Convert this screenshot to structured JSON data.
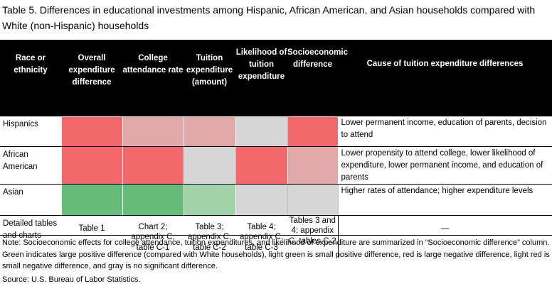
{
  "title": "Table 5. Differences in educational investments among Hispanic, African American, and Asian households compared with White (non-Hispanic) households",
  "colors": {
    "red": "#f4686b",
    "light_red": "#e2a7a9",
    "gray": "#d6d6d6",
    "green": "#66bc7a",
    "light_green": "#a2d2a8",
    "header_bg": "#000000"
  },
  "headers": {
    "race": "Race or ethnicity",
    "overall": "Overall expenditure difference",
    "college": "College attendance rate",
    "tuition": "Tuition expenditure (amount)",
    "likelihood": "Likelihood of tuition expenditure",
    "socio": "Socioeconomic difference",
    "cause": "Cause of tuition expenditure differences"
  },
  "rows": [
    {
      "label": "Hispanics",
      "cells": [
        "red",
        "light_red",
        "light_red",
        "gray",
        "red"
      ],
      "cause": "Lower permanent income, education of parents, decision to attend"
    },
    {
      "label": "African American",
      "cells": [
        "red",
        "red",
        "gray",
        "red",
        "light_red"
      ],
      "cause": "Lower propensity to attend college, lower likelihood of expenditure, lower permanent income, and education of parents"
    },
    {
      "label": "Asian",
      "cells": [
        "green",
        "green",
        "light_green",
        "gray",
        "gray"
      ],
      "cause": "Higher rates of attendance; higher expenditure levels"
    }
  ],
  "detailed": {
    "label": "Detailed tables and charts",
    "overall": "Table 1",
    "college": "Chart 2; appendix C, table C-1",
    "tuition": "Table 3; appendix C, table C-2",
    "likelihood": "Table 4; appendix C, table C-3",
    "socio": "Tables 3 and 4; appendix C, tables C-2",
    "cause": "—"
  },
  "note": "Note: Socioeconomic effects for college attendance, tuition expenditures, and likelihood of expenditure are summarized in “Socioeconomic difference” column. Green indicates large positive difference (compared with White households), light green is small positive difference, red is large negative difference, light red is small negative difference, and gray is no significant difference.",
  "source": "Source: U.S. Bureau of Labor Statistics."
}
